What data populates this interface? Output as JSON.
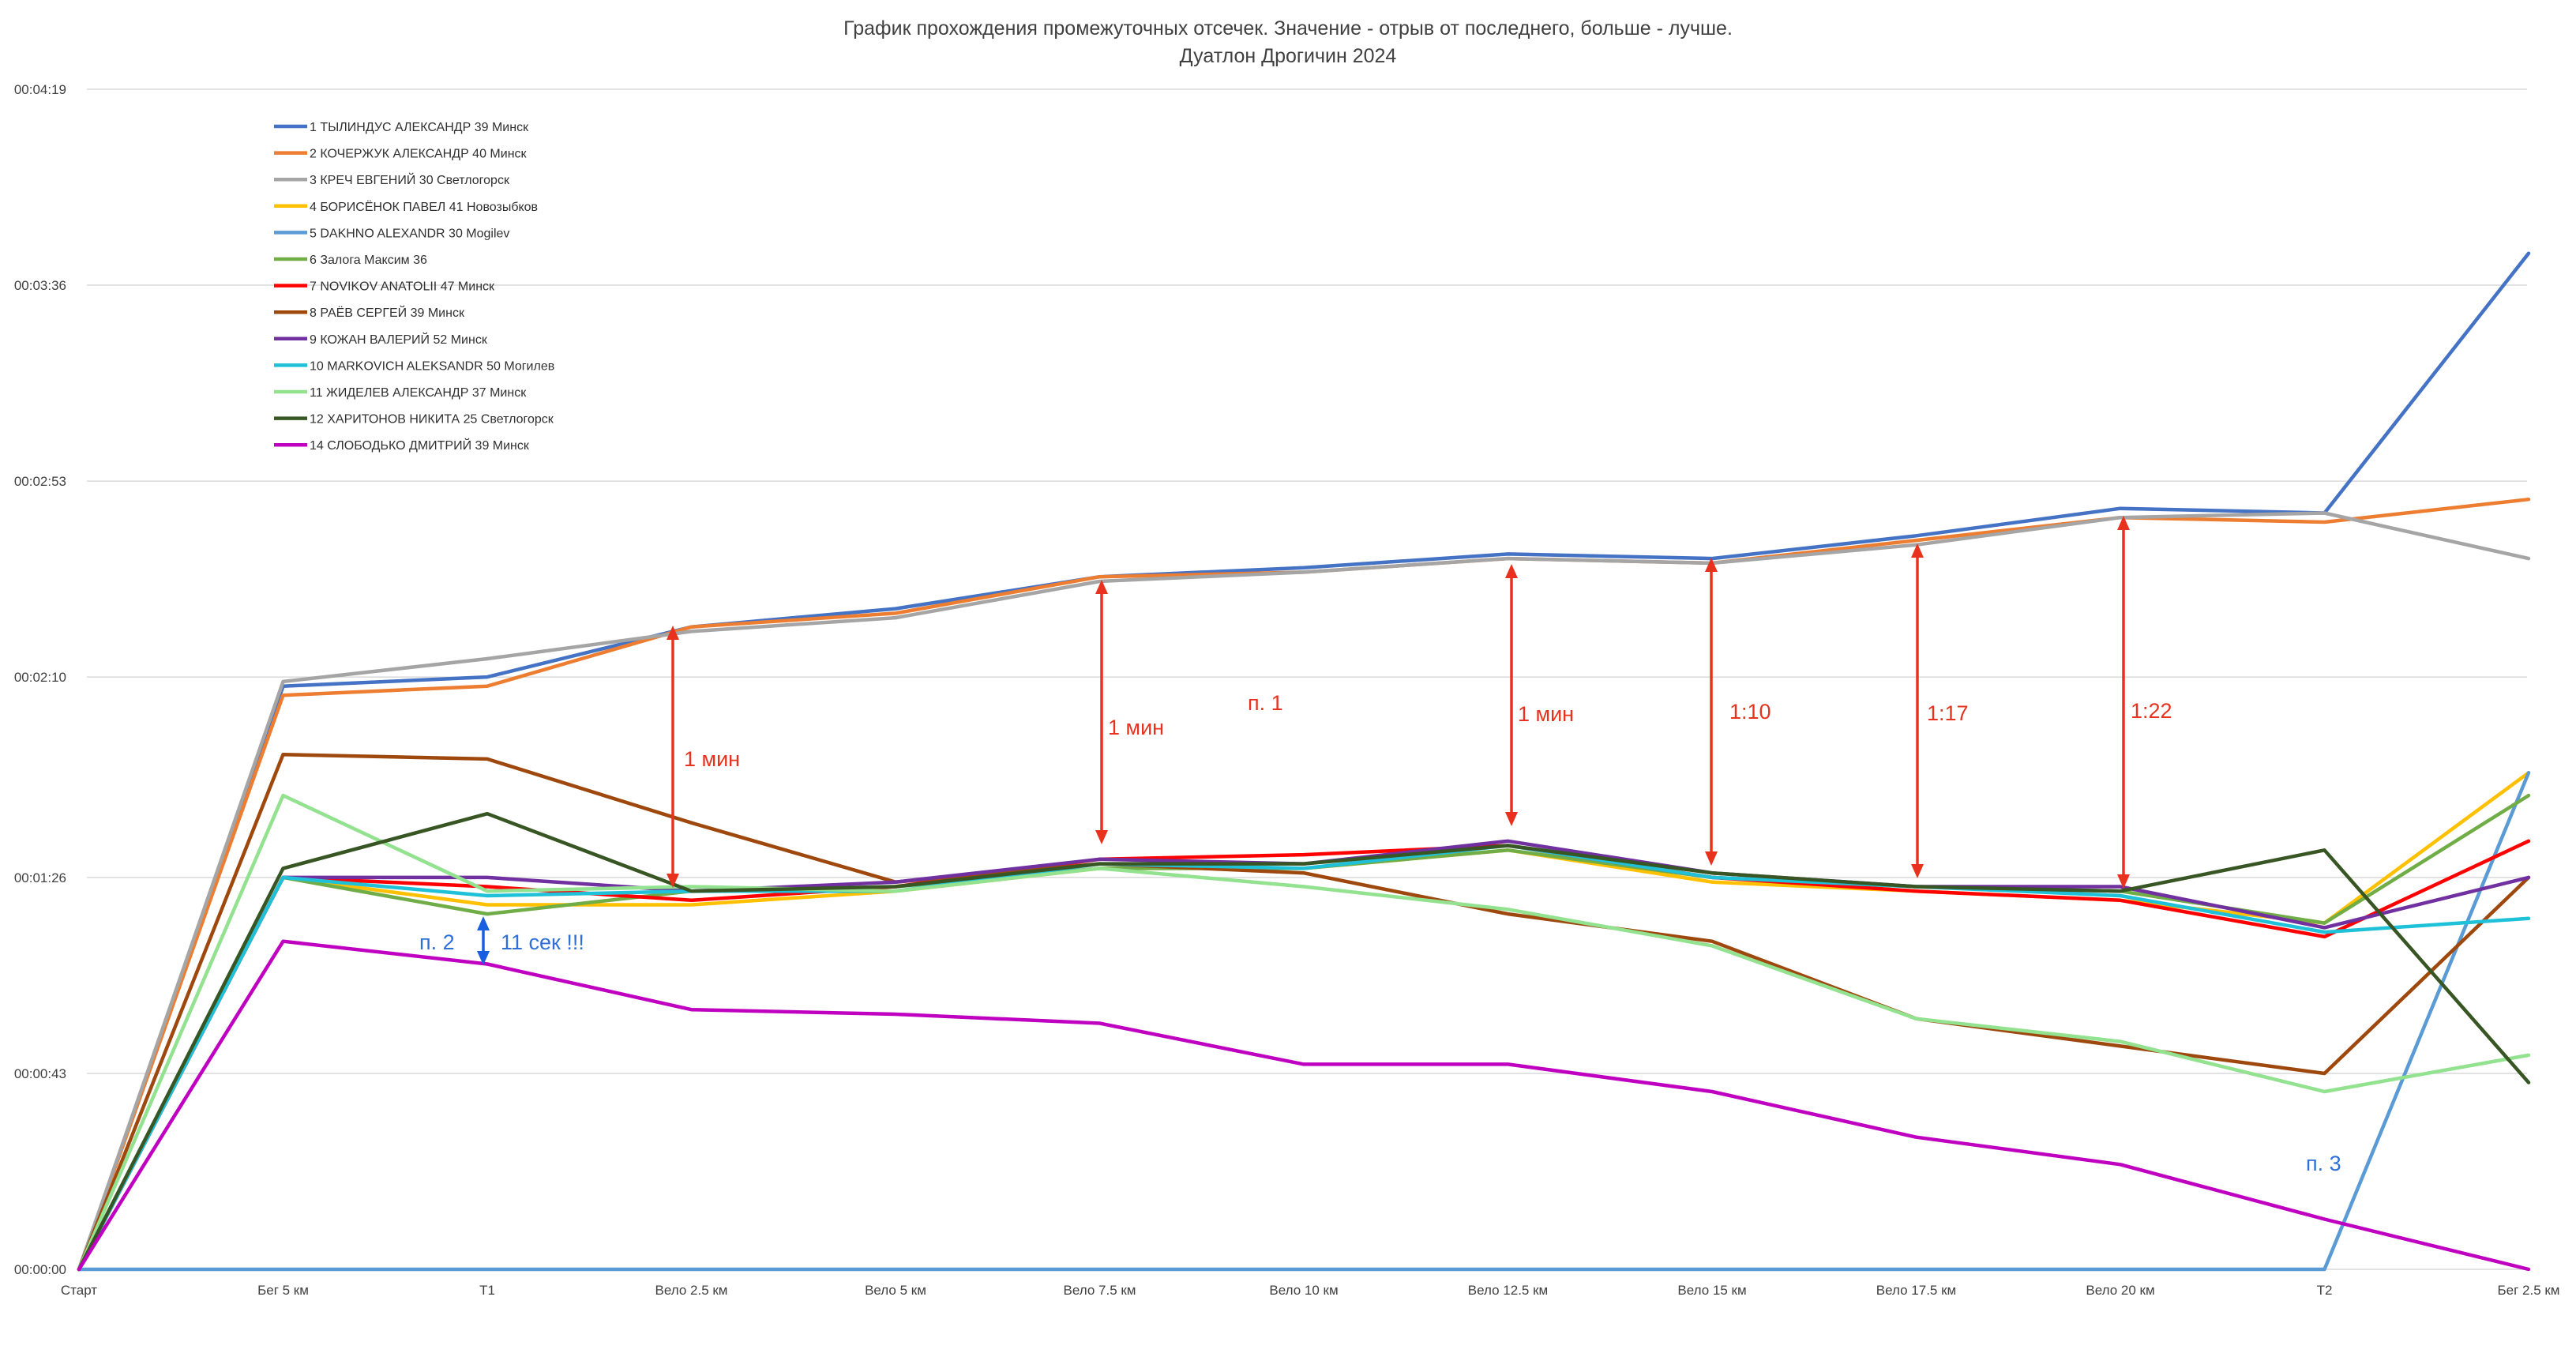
{
  "chart_data": {
    "type": "line",
    "title": "График прохождения промежуточных отсечек. Значение - отрыв от последнего, больше - лучше.",
    "subtitle": "Дуатлон Дрогичин 2024",
    "xlabel": "",
    "ylabel": "",
    "categories": [
      "Старт",
      "Бег 5 км",
      "Т1",
      "Вело 2.5 км",
      "Вело 5 км",
      "Вело 7.5 км",
      "Вело 10 км",
      "Вело 12.5 км",
      "Вело 15 км",
      "Вело 17.5 км",
      "Вело 20 км",
      "Т2",
      "Бег 2.5 км"
    ],
    "y_unit": "seconds",
    "ylim": [
      0,
      259
    ],
    "y_ticks": [
      {
        "value": 0,
        "label": "00:00:00"
      },
      {
        "value": 43,
        "label": "00:00:43"
      },
      {
        "value": 86,
        "label": "00:01:26"
      },
      {
        "value": 130,
        "label": "00:02:10"
      },
      {
        "value": 173,
        "label": "00:02:53"
      },
      {
        "value": 216,
        "label": "00:03:36"
      },
      {
        "value": 259,
        "label": "00:04:19"
      }
    ],
    "grid": true,
    "legend_position": "top-left",
    "series": [
      {
        "name": "1 ТЫЛИНДУС АЛЕКСАНДР 39 Минск",
        "color": "#4472c4",
        "values": [
          0,
          128,
          130,
          141,
          145,
          152,
          154,
          157,
          156,
          161,
          167,
          166,
          223
        ]
      },
      {
        "name": "2 КОЧЕРЖУК АЛЕКСАНДР 40 Минск",
        "color": "#ed7d31",
        "values": [
          0,
          126,
          128,
          141,
          144,
          152,
          153,
          156,
          155,
          160,
          165,
          164,
          169
        ]
      },
      {
        "name": "3 КРЕЧ ЕВГЕНИЙ 30 Светлогорск",
        "color": "#a5a5a5",
        "values": [
          0,
          129,
          134,
          140,
          143,
          151,
          153,
          156,
          155,
          159,
          165,
          166,
          156
        ]
      },
      {
        "name": "4 БОРИСЁНОК ПАВЕЛ 41 Новозыбков",
        "color": "#ffc000",
        "values": [
          0,
          86,
          80,
          80,
          83,
          88,
          88,
          92,
          85,
          83,
          81,
          76,
          109
        ]
      },
      {
        "name": "5 DAKHNO ALEXANDR 30 Mogilev",
        "color": "#5b9bd5",
        "values": [
          0,
          0,
          0,
          0,
          0,
          0,
          0,
          0,
          0,
          0,
          0,
          0,
          109
        ]
      },
      {
        "name": "6 Залога Максим 36",
        "color": "#70ad47",
        "values": [
          0,
          86,
          78,
          83,
          84,
          88,
          88,
          92,
          86,
          84,
          83,
          76,
          104
        ]
      },
      {
        "name": "7 NOVIKOV ANATOLII 47 Минск",
        "color": "#ff0000",
        "values": [
          0,
          86,
          84,
          81,
          84,
          90,
          91,
          93,
          86,
          83,
          81,
          73,
          94
        ]
      },
      {
        "name": "8 РАЁВ СЕРГЕЙ 39 Минск",
        "color": "#9e480e",
        "values": [
          0,
          113,
          112,
          98,
          85,
          89,
          87,
          78,
          72,
          55,
          49,
          43,
          86
        ]
      },
      {
        "name": "9 КОЖАН ВАЛЕРИЙ 52 Минск",
        "color": "#7030a0",
        "values": [
          0,
          86,
          86,
          83,
          85,
          90,
          89,
          94,
          87,
          84,
          84,
          75,
          86
        ]
      },
      {
        "name": "10 MARKOVICH ALEKSANDR 50  Могилев",
        "color": "#1fc1d8",
        "values": [
          0,
          86,
          82,
          83,
          83,
          89,
          88,
          93,
          86,
          84,
          82,
          74,
          77
        ]
      },
      {
        "name": "11 ЖИДЕЛЕВ АЛЕКСАНДР 37 Минск",
        "color": "#92e28f",
        "values": [
          0,
          104,
          83,
          84,
          83,
          88,
          84,
          79,
          71,
          55,
          50,
          39,
          47
        ]
      },
      {
        "name": "12 ХАРИТОНОВ НИКИТА 25 Светлогорск",
        "color": "#375623",
        "values": [
          0,
          88,
          100,
          83,
          84,
          89,
          89,
          93,
          87,
          84,
          83,
          92,
          41
        ]
      },
      {
        "name": "14 СЛОБОДЬКО ДМИТРИЙ 39  Минск",
        "color": "#c000c0",
        "values": [
          0,
          72,
          67,
          57,
          56,
          54,
          45,
          45,
          39,
          29,
          23,
          11,
          0
        ]
      }
    ],
    "annotations": [
      {
        "text": "1 мин",
        "color": "#e8321e"
      },
      {
        "text": "1 мин",
        "color": "#e8321e"
      },
      {
        "text": "1 мин",
        "color": "#e8321e"
      },
      {
        "text": "1:10",
        "color": "#e8321e"
      },
      {
        "text": "1:17",
        "color": "#e8321e"
      },
      {
        "text": "1:22",
        "color": "#e8321e"
      },
      {
        "text": "п. 1",
        "color": "#e8321e"
      },
      {
        "text": "п. 2",
        "color": "#2e6fd8"
      },
      {
        "text": "11 сек !!!",
        "color": "#2e6fd8"
      },
      {
        "text": "п. 3",
        "color": "#2e6fd8"
      }
    ]
  }
}
